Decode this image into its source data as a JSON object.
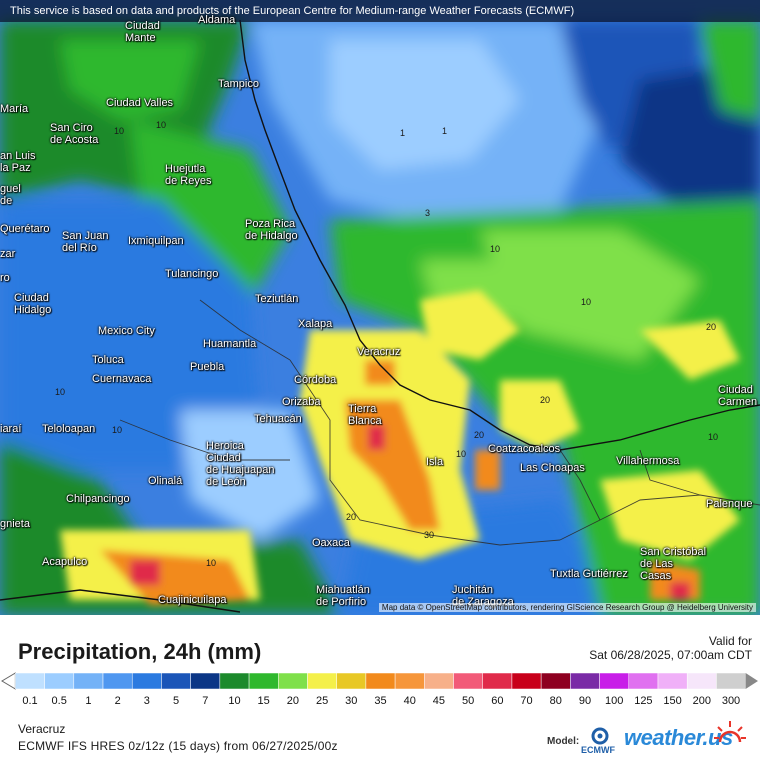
{
  "banner": "This service is based on data and products of the European Centre for Medium-range Weather Forecasts (ECMWF)",
  "map": {
    "attribution": "Map data © OpenStreetMap contributors, rendering GIScience Research Group @ Heidelberg University",
    "cities": [
      {
        "name": "Aldama"
      },
      {
        "name": "Ciudad\nMante"
      },
      {
        "name": "Tampico"
      },
      {
        "name": "Ciudad Valles"
      },
      {
        "name": "San Ciro\nde Acosta"
      },
      {
        "name": "Huejutla\nde Reyes"
      },
      {
        "name": "Poza Rica\nde Hidalgo"
      },
      {
        "name": "Querétaro"
      },
      {
        "name": "San Juan\ndel Río"
      },
      {
        "name": "Ixmiquilpan"
      },
      {
        "name": "Tulancingo"
      },
      {
        "name": "Teziutlán"
      },
      {
        "name": "Ciudad\nHidalgo"
      },
      {
        "name": "Xalapa"
      },
      {
        "name": "Mexico City"
      },
      {
        "name": "Huamantla"
      },
      {
        "name": "Veracruz"
      },
      {
        "name": "Toluca"
      },
      {
        "name": "Puebla"
      },
      {
        "name": "Cuernavaca"
      },
      {
        "name": "Córdoba"
      },
      {
        "name": "Orizaba"
      },
      {
        "name": "Tierra\nBlanca"
      },
      {
        "name": "Tehuacán"
      },
      {
        "name": "Teloloapan"
      },
      {
        "name": "Heroica\nCiudad\nde Huajuapan\nde León"
      },
      {
        "name": "Coatzacoalcos"
      },
      {
        "name": "Las Choapas"
      },
      {
        "name": "Villahermosa"
      },
      {
        "name": "Isla"
      },
      {
        "name": "Olinalá"
      },
      {
        "name": "Chilpancingo"
      },
      {
        "name": "Oaxaca"
      },
      {
        "name": "Acapulco"
      },
      {
        "name": "Cuajinicuilapa"
      },
      {
        "name": "Miahuatlán\nde Porfirio"
      },
      {
        "name": "Juchitán\nde Zaragoza"
      },
      {
        "name": "Tuxtla Gutiérrez"
      },
      {
        "name": "San Cristóbal\nde Las\nCasas"
      },
      {
        "name": "Palenque"
      },
      {
        "name": "Ciudad\nCarmen"
      },
      {
        "name": "an Luis\nla Paz"
      },
      {
        "name": "María"
      },
      {
        "name": "guel\nde"
      },
      {
        "name": "zar"
      },
      {
        "name": "ro"
      },
      {
        "name": "iaraí"
      },
      {
        "name": "gnieta"
      }
    ],
    "contour_labels": [
      "1",
      "1",
      "3",
      "10",
      "10",
      "10",
      "20",
      "20",
      "20",
      "10",
      "10",
      "20",
      "30",
      "10",
      "10",
      "10",
      "10"
    ]
  },
  "legend": {
    "title": "Precipitation, 24h (mm)",
    "valid_for_label": "Valid for",
    "valid_time": "Sat 06/28/2025, 07:00am CDT",
    "scale": [
      {
        "label": "0.1",
        "color": "#bfe0ff"
      },
      {
        "label": "0.5",
        "color": "#9ccdff"
      },
      {
        "label": "1",
        "color": "#74b2f7"
      },
      {
        "label": "2",
        "color": "#4f97f0"
      },
      {
        "label": "3",
        "color": "#2b7ae0"
      },
      {
        "label": "5",
        "color": "#1b55b8"
      },
      {
        "label": "7",
        "color": "#0b3686"
      },
      {
        "label": "10",
        "color": "#1c8a2c"
      },
      {
        "label": "15",
        "color": "#2fb82d"
      },
      {
        "label": "20",
        "color": "#7fe04a"
      },
      {
        "label": "25",
        "color": "#f4f04a"
      },
      {
        "label": "30",
        "color": "#e8c825"
      },
      {
        "label": "35",
        "color": "#f28a1c"
      },
      {
        "label": "40",
        "color": "#f6963a"
      },
      {
        "label": "45",
        "color": "#f7b089"
      },
      {
        "label": "50",
        "color": "#f25a78"
      },
      {
        "label": "60",
        "color": "#e02a4a"
      },
      {
        "label": "70",
        "color": "#c8001a"
      },
      {
        "label": "80",
        "color": "#8e0020"
      },
      {
        "label": "90",
        "color": "#7a2aa6"
      },
      {
        "label": "100",
        "color": "#c81ee8"
      },
      {
        "label": "125",
        "color": "#e070f0"
      },
      {
        "label": "150",
        "color": "#f0b0f8"
      },
      {
        "label": "200",
        "color": "#f6e6fa"
      },
      {
        "label": "300",
        "color": "#cfcfcf"
      }
    ],
    "region": "Veracruz",
    "model": "ECMWF IFS HRES 0z/12z (15 days) from 06/27/2025/00z",
    "model_label": "Model:",
    "ecmwf_logo_text": "ECMWF",
    "brand": "weather.us"
  }
}
